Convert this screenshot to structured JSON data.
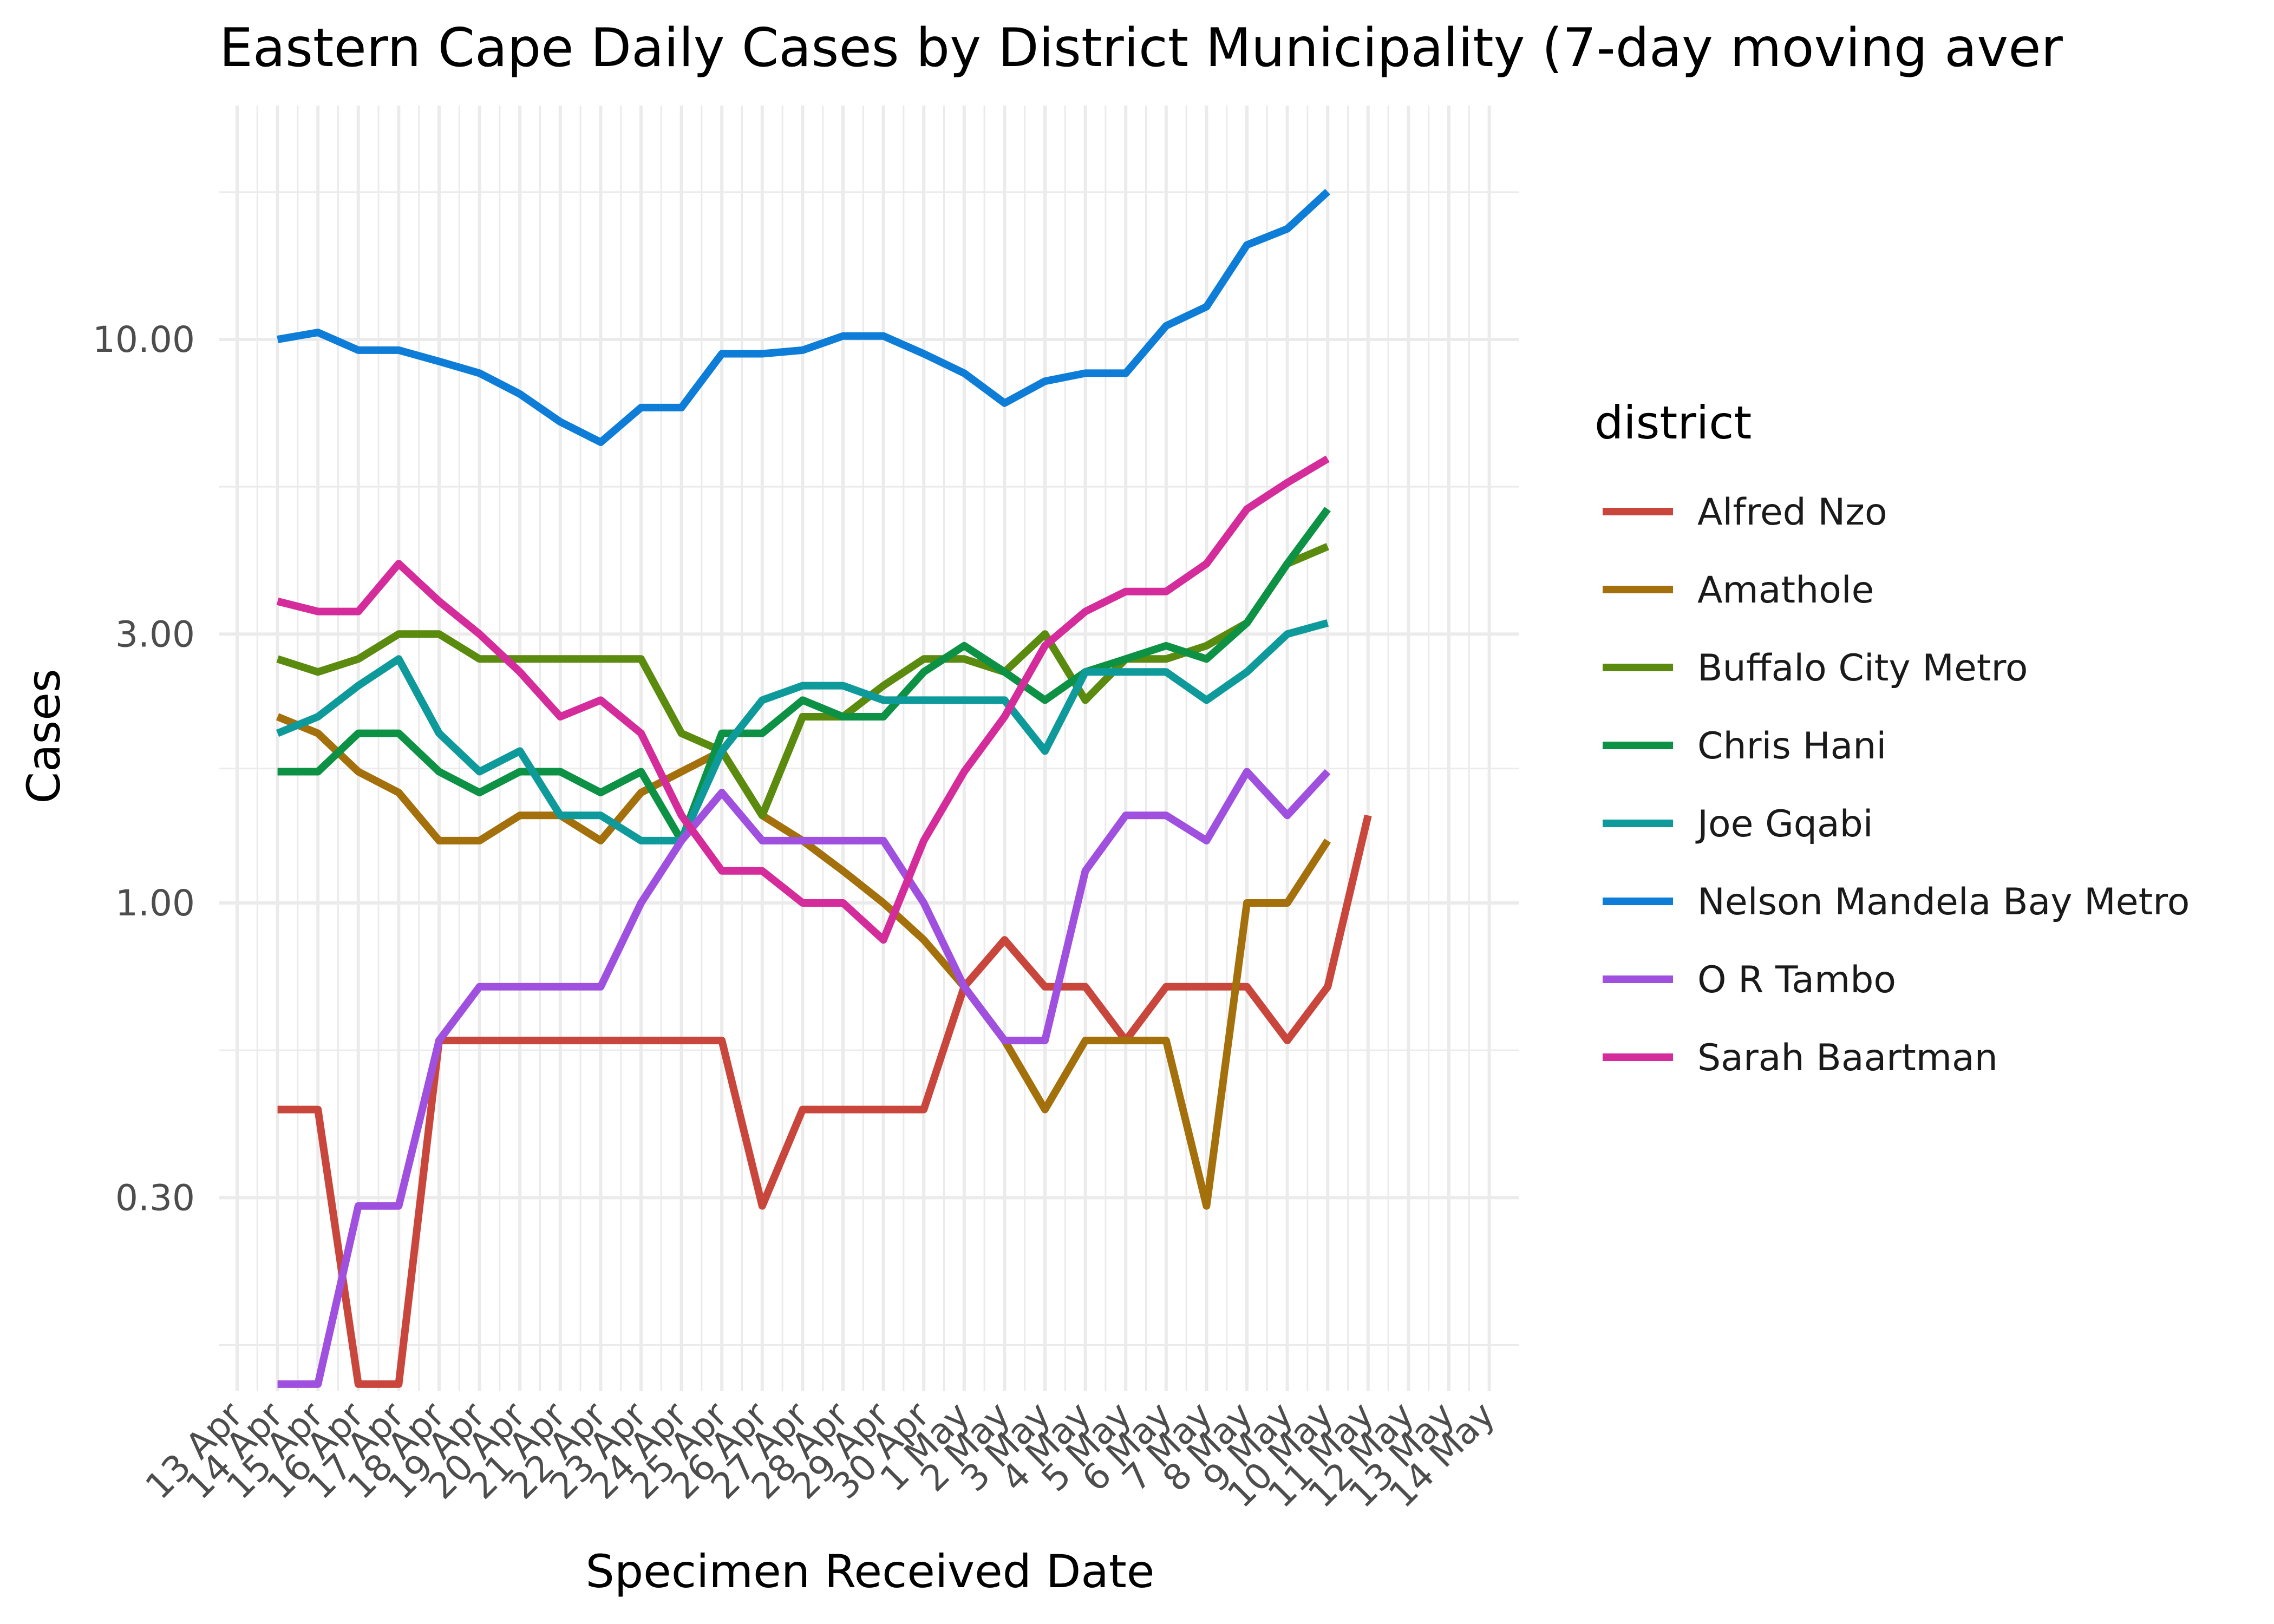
{
  "chart_data": {
    "type": "line",
    "title": "Eastern Cape Daily Cases by District Municipality (7-day moving aver",
    "xlabel": "Specimen Received Date",
    "ylabel": "Cases",
    "y_scale": "log10",
    "ylim": [
      0.136,
      26
    ],
    "y_ticks": [
      0.3,
      1,
      3,
      10
    ],
    "y_tick_labels": [
      "0.30",
      "1.00",
      "3.00",
      "10.00"
    ],
    "grid": true,
    "legend_title": "district",
    "legend_position": "right",
    "x": [
      "13 Apr",
      "14 Apr",
      "15 Apr",
      "16 Apr",
      "17 Apr",
      "18 Apr",
      "19 Apr",
      "20 Apr",
      "21 Apr",
      "22 Apr",
      "23 Apr",
      "24 Apr",
      "25 Apr",
      "26 Apr",
      "27 Apr",
      "28 Apr",
      "29 Apr",
      "30 Apr",
      "1 May",
      "2 May",
      "3 May",
      "4 May",
      "5 May",
      "6 May",
      "7 May",
      "8 May",
      "9 May",
      "10 May",
      "11 May",
      "12 May",
      "13 May",
      "14 May"
    ],
    "series": [
      {
        "name": "Alfred Nzo",
        "color": "#c9463d",
        "values": [
          null,
          0.43,
          0.43,
          0.14,
          0.14,
          0.57,
          0.57,
          0.57,
          0.57,
          0.57,
          0.57,
          0.57,
          0.57,
          0.29,
          0.43,
          0.43,
          0.43,
          0.43,
          0.71,
          0.86,
          0.71,
          0.71,
          0.57,
          0.71,
          0.71,
          0.71,
          0.57,
          0.71,
          1.43,
          null,
          null,
          null
        ]
      },
      {
        "name": "Amathole",
        "color": "#a3700b",
        "values": [
          null,
          2.14,
          2.0,
          1.71,
          1.57,
          1.29,
          1.29,
          1.43,
          1.43,
          1.29,
          1.57,
          1.71,
          1.86,
          1.43,
          1.29,
          1.14,
          1.0,
          0.86,
          0.71,
          0.57,
          0.43,
          0.57,
          0.57,
          0.57,
          0.29,
          1.0,
          1.0,
          1.29,
          null,
          null,
          null,
          null
        ]
      },
      {
        "name": "Buffalo City Metro",
        "color": "#5a8a0e",
        "values": [
          null,
          2.71,
          2.57,
          2.71,
          3.0,
          3.0,
          2.71,
          2.71,
          2.71,
          2.71,
          2.71,
          2.0,
          1.86,
          1.43,
          2.14,
          2.14,
          2.43,
          2.71,
          2.71,
          2.57,
          3.0,
          2.29,
          2.71,
          2.71,
          2.86,
          3.14,
          4.0,
          4.29,
          null,
          null,
          null,
          null
        ]
      },
      {
        "name": "Chris Hani",
        "color": "#0c9145",
        "values": [
          null,
          1.71,
          1.71,
          2.0,
          2.0,
          1.71,
          1.57,
          1.71,
          1.71,
          1.57,
          1.71,
          1.29,
          2.0,
          2.0,
          2.29,
          2.14,
          2.14,
          2.57,
          2.86,
          2.57,
          2.29,
          2.57,
          2.71,
          2.86,
          2.71,
          3.14,
          4.0,
          5.0,
          null,
          null,
          null,
          null
        ]
      },
      {
        "name": "Joe Gqabi",
        "color": "#0e9a9a",
        "values": [
          null,
          2.0,
          2.14,
          2.43,
          2.71,
          2.0,
          1.71,
          1.86,
          1.43,
          1.43,
          1.29,
          1.29,
          1.86,
          2.29,
          2.43,
          2.43,
          2.29,
          2.29,
          2.29,
          2.29,
          1.86,
          2.57,
          2.57,
          2.57,
          2.29,
          2.57,
          3.0,
          3.14,
          null,
          null,
          null,
          null
        ]
      },
      {
        "name": "Nelson Mandela Bay Metro",
        "color": "#0d7dd8",
        "values": [
          null,
          10.0,
          10.29,
          9.57,
          9.57,
          9.14,
          8.71,
          8.0,
          7.14,
          6.57,
          7.57,
          7.57,
          9.43,
          9.43,
          9.57,
          10.14,
          10.14,
          9.43,
          8.71,
          7.71,
          8.43,
          8.71,
          8.71,
          10.57,
          11.43,
          14.71,
          15.71,
          18.29,
          null,
          null,
          null,
          null
        ]
      },
      {
        "name": "O R Tambo",
        "color": "#a050de",
        "values": [
          null,
          0.14,
          0.14,
          0.29,
          0.29,
          0.57,
          0.71,
          0.71,
          0.71,
          0.71,
          1.0,
          1.29,
          1.57,
          1.29,
          1.29,
          1.29,
          1.29,
          1.0,
          0.71,
          0.57,
          0.57,
          1.14,
          1.43,
          1.43,
          1.29,
          1.71,
          1.43,
          1.71,
          null,
          null,
          null,
          null
        ]
      },
      {
        "name": "Sarah Baartman",
        "color": "#d42c9b",
        "values": [
          null,
          3.43,
          3.29,
          3.29,
          4.0,
          3.43,
          3.0,
          2.57,
          2.14,
          2.29,
          2.0,
          1.43,
          1.14,
          1.14,
          1.0,
          1.0,
          0.86,
          1.29,
          1.71,
          2.14,
          2.86,
          3.29,
          3.57,
          3.57,
          4.0,
          5.0,
          5.57,
          6.14,
          null,
          null,
          null,
          null
        ]
      }
    ]
  }
}
